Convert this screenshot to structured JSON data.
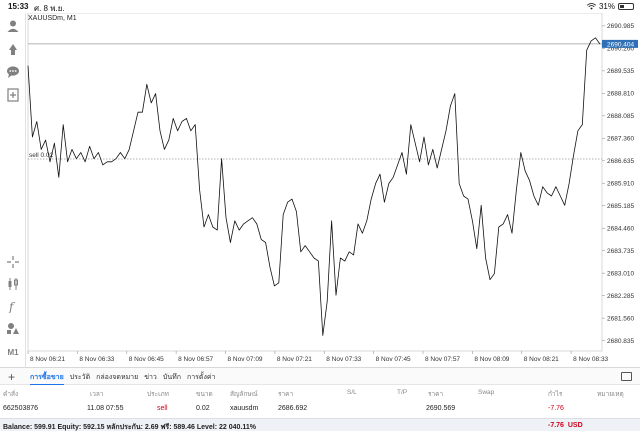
{
  "status": {
    "time": "15:33",
    "date": "ศ. 8 พ.ย.",
    "battery": "31%"
  },
  "chart": {
    "symbol": "XAUUSDm, M1",
    "current_price": "2690.404",
    "order_label": "sell 0.02",
    "order_price": 2686.692,
    "y_ticks": [
      "2690.985",
      "2690.260",
      "2689.535",
      "2688.810",
      "2688.085",
      "2687.360",
      "2686.635",
      "2685.910",
      "2685.185",
      "2684.460",
      "2683.735",
      "2683.010",
      "2682.285",
      "2681.560",
      "2680.835"
    ],
    "x_ticks": [
      "8 Nov 06:21",
      "8 Nov 06:33",
      "8 Nov 06:45",
      "8 Nov 06:57",
      "8 Nov 07:09",
      "8 Nov 07:21",
      "8 Nov 07:33",
      "8 Nov 07:45",
      "8 Nov 07:57",
      "8 Nov 08:09",
      "8 Nov 08:21",
      "8 Nov 08:33"
    ],
    "ylim": [
      2680.5,
      2691.4
    ],
    "xlim_minutes": [
      0,
      139.5
    ],
    "x_tick_minutes": [
      0,
      12,
      24,
      36,
      48,
      60,
      72,
      84,
      96,
      108,
      120,
      132
    ],
    "prices": [
      2689.7,
      2687.4,
      2687.9,
      2687.0,
      2687.3,
      2686.6,
      2687.2,
      2686.1,
      2687.8,
      2686.6,
      2687.0,
      2686.7,
      2686.9,
      2686.6,
      2687.1,
      2686.7,
      2686.9,
      2686.5,
      2686.6,
      2686.6,
      2686.7,
      2686.9,
      2686.7,
      2687.0,
      2687.6,
      2688.2,
      2688.2,
      2689.1,
      2688.5,
      2688.8,
      2687.6,
      2687.0,
      2687.3,
      2688.0,
      2687.6,
      2687.9,
      2688.0,
      2687.6,
      2687.8,
      2685.7,
      2684.5,
      2684.9,
      2684.5,
      2684.4,
      2686.7,
      2684.8,
      2684.0,
      2684.7,
      2684.4,
      2684.6,
      2684.7,
      2684.8,
      2684.6,
      2684.1,
      2684.0,
      2683.2,
      2682.6,
      2682.7,
      2684.9,
      2685.3,
      2685.4,
      2685.0,
      2683.7,
      2683.9,
      2683.7,
      2683.5,
      2683.4,
      2681.0,
      2682.1,
      2684.7,
      2682.3,
      2683.5,
      2683.4,
      2683.7,
      2683.6,
      2684.6,
      2684.3,
      2684.7,
      2685.4,
      2685.9,
      2686.2,
      2685.3,
      2685.9,
      2686.1,
      2686.5,
      2686.9,
      2686.2,
      2687.8,
      2687.2,
      2686.6,
      2687.4,
      2686.5,
      2687.0,
      2686.4,
      2687.0,
      2687.6,
      2688.4,
      2688.8,
      2685.9,
      2685.5,
      2685.4,
      2684.7,
      2683.8,
      2685.2,
      2683.5,
      2682.8,
      2683.0,
      2684.5,
      2684.6,
      2684.9,
      2684.3,
      2685.7,
      2686.9,
      2686.3,
      2686.0,
      2685.5,
      2685.2,
      2685.8,
      2685.6,
      2685.5,
      2685.8,
      2685.5,
      2685.2,
      2685.9,
      2686.8,
      2687.6,
      2687.8,
      2690.2,
      2690.5,
      2690.6,
      2690.4
    ]
  },
  "tabs": [
    "การซื้อขาย",
    "ประวัติ",
    "กล่องจดหมาย",
    "ข่าว",
    "บันทึก",
    "การตั้งค่า"
  ],
  "table": {
    "headers": [
      "คำสั่ง",
      "เวลา",
      "ประเภท",
      "ขนาด",
      "สัญลักษณ์",
      "ราคา",
      "S/L",
      "T/P",
      "ราคา",
      "Swap",
      "กำไร",
      "หมายเหตุ"
    ],
    "rows": [
      {
        "order": "662503876",
        "time": "11.08 07:55",
        "type": "sell",
        "size": "0.02",
        "symbol": "xauusdm",
        "price": "2686.692",
        "sl": "",
        "tp": "",
        "cur_price": "2690.569",
        "swap": "",
        "profit": "-7.76",
        "comment": ""
      }
    ]
  },
  "summary": {
    "text": "Balance: 599.91 Equity: 592.15 หลักประกัน: 2.69 ฟรี: 589.46 Level: 22 040.11%",
    "profit": "-7.76",
    "currency": "USD"
  },
  "colors": {
    "accent": "#1a73e8",
    "loss": "#d0021b",
    "price_tag": "#2f6fb5"
  }
}
